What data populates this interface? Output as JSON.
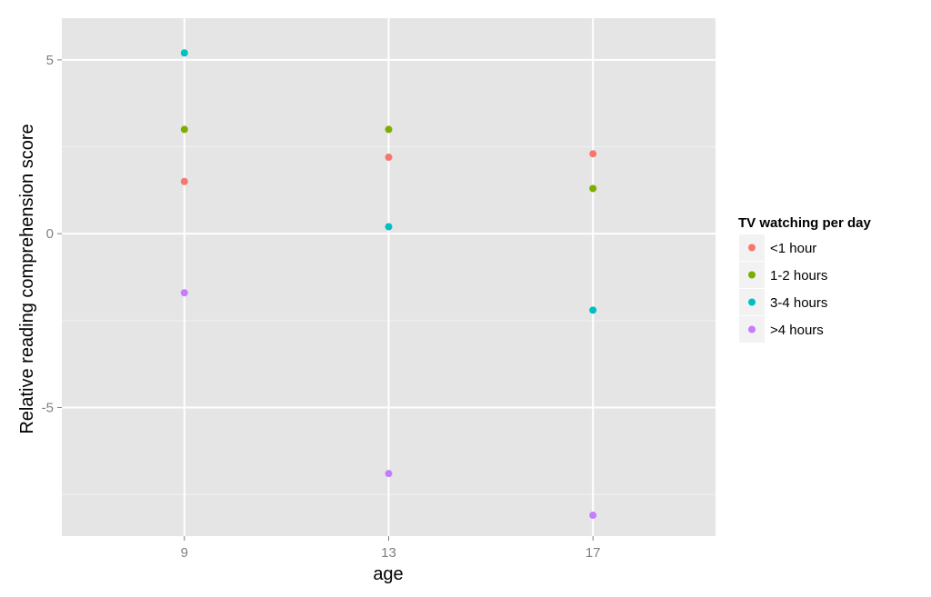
{
  "chart_data": {
    "type": "scatter",
    "xlabel": "age",
    "ylabel": "Relative reading comprehension score",
    "x_ticks": [
      9,
      13,
      17
    ],
    "y_ticks": [
      -5,
      0,
      5
    ],
    "xlim": [
      6.6,
      19.4
    ],
    "ylim": [
      -8.7,
      6.2
    ],
    "grid": true,
    "legend_position": "right",
    "legend_title": "TV watching per day",
    "series": [
      {
        "name": "<1 hour",
        "color": "#F8766D",
        "points": [
          [
            9,
            1.5
          ],
          [
            13,
            2.2
          ],
          [
            17,
            2.3
          ]
        ]
      },
      {
        "name": "1-2 hours",
        "color": "#7CAE00",
        "points": [
          [
            9,
            3.0
          ],
          [
            13,
            3.0
          ],
          [
            17,
            1.3
          ]
        ]
      },
      {
        "name": "3-4 hours",
        "color": "#00BFC4",
        "points": [
          [
            9,
            5.2
          ],
          [
            13,
            0.2
          ],
          [
            17,
            -2.2
          ]
        ]
      },
      {
        "name": ">4 hours",
        "color": "#C77CFF",
        "points": [
          [
            9,
            -1.7
          ],
          [
            13,
            -6.9
          ],
          [
            17,
            -8.1
          ]
        ]
      }
    ]
  },
  "colors": {
    "panel_background": "#E5E5E5",
    "grid_major": "#FFFFFF",
    "grid_minor": "#F2F2F2",
    "tick_text": "#7F7F7F",
    "legend_key_background": "#F2F2F2"
  }
}
